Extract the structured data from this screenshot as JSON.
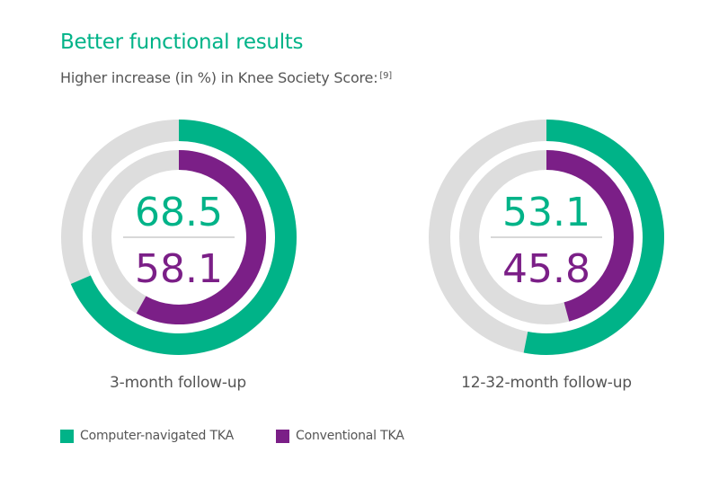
{
  "title": "Better functional results",
  "subtitle": "Higher increase (in %) in Knee Society Score:",
  "subtitle_ref": "[9]",
  "colors": {
    "accent": "#00b388",
    "secondary": "#7b1f87",
    "track": "#dddddd",
    "text": "#555555"
  },
  "chart_data": [
    {
      "type": "donut",
      "caption": "3-month follow-up",
      "series": [
        {
          "name": "Computer-navigated TKA",
          "value": 68.5,
          "label": "68.5"
        },
        {
          "name": "Conventional TKA",
          "value": 58.1,
          "label": "58.1"
        }
      ],
      "scale_max": 100
    },
    {
      "type": "donut",
      "caption": "12-32-month follow-up",
      "series": [
        {
          "name": "Computer-navigated TKA",
          "value": 53.1,
          "label": "53.1"
        },
        {
          "name": "Conventional TKA",
          "value": 45.8,
          "label": "45.8"
        }
      ],
      "scale_max": 100
    }
  ],
  "legend": [
    {
      "label": "Computer-navigated TKA",
      "color": "#00b388"
    },
    {
      "label": "Conventional TKA",
      "color": "#7b1f87"
    }
  ]
}
